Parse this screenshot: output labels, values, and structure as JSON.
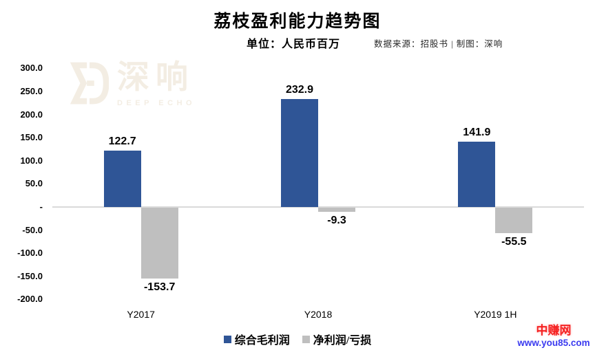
{
  "chart_data": {
    "type": "bar",
    "title": "荔枝盈利能力趋势图",
    "subtitle": "单位：人民币百万",
    "source": "数据来源：招股书 | 制图：深响",
    "categories": [
      "Y2017",
      "Y2018",
      "Y2019 1H"
    ],
    "series": [
      {
        "name": "综合毛利润",
        "color": "#2F5596",
        "values": [
          122.7,
          232.9,
          141.9
        ],
        "labels": [
          "122.7",
          "232.9",
          "141.9"
        ]
      },
      {
        "name": "净利润/亏损",
        "color": "#BFBFBF",
        "values": [
          -153.7,
          -9.3,
          -55.5
        ],
        "labels": [
          "-153.7",
          "-9.3",
          "-55.5"
        ]
      }
    ],
    "y_ticks": [
      {
        "label": "300.0",
        "value": 300
      },
      {
        "label": "250.0",
        "value": 250
      },
      {
        "label": "200.0",
        "value": 200
      },
      {
        "label": "150.0",
        "value": 150
      },
      {
        "label": "100.0",
        "value": 100
      },
      {
        "label": "50.0",
        "value": 50
      },
      {
        "label": "-",
        "value": 0
      },
      {
        "label": "-50.0",
        "value": -50
      },
      {
        "label": "-100.0",
        "value": -100
      },
      {
        "label": "-150.0",
        "value": -150
      },
      {
        "label": "-200.0",
        "value": -200
      }
    ],
    "ylim": [
      -200,
      300
    ],
    "grid": false,
    "legend_position": "bottom"
  },
  "watermark": {
    "logo_text": "深响",
    "logo_subtext": "DEEP ECHO",
    "color": "#F3EDE3"
  },
  "site_watermark": {
    "name": "中赚网",
    "url": "www.you85.com",
    "name_color": "#F52121",
    "url_color": "#3B3BEF"
  }
}
